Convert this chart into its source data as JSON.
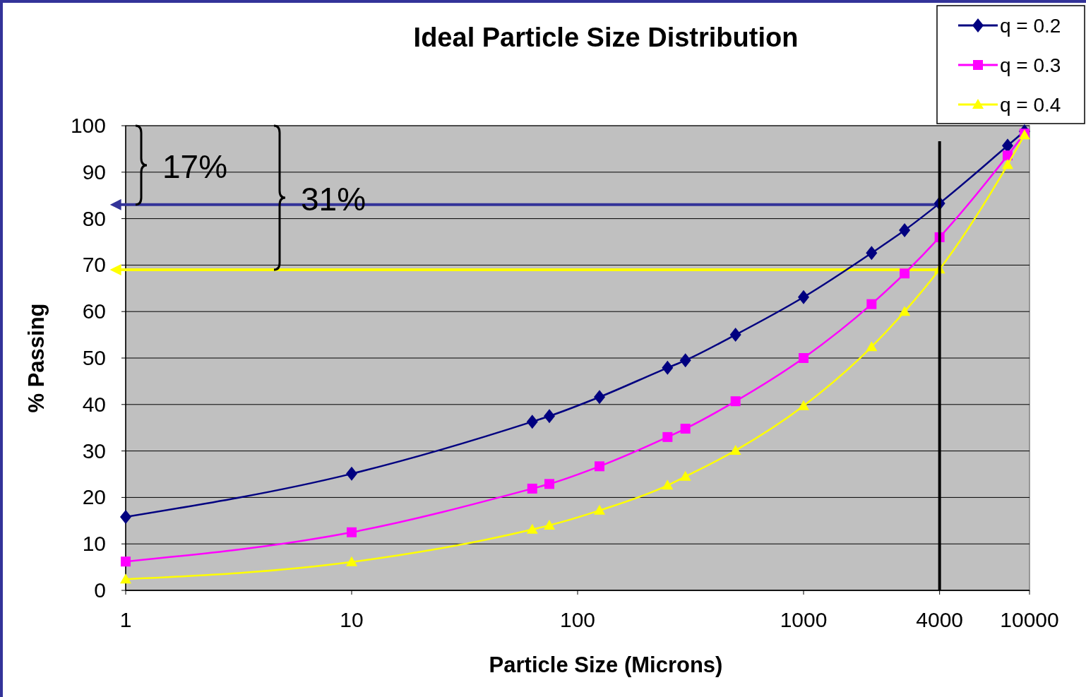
{
  "chart_data": {
    "type": "line",
    "title": "Ideal Particle Size Distribution",
    "xlabel": "Particle Size (Microns)",
    "ylabel": "% Passing",
    "log": "x",
    "xlim": [
      1,
      10000
    ],
    "xticks": [
      1,
      10,
      100,
      1000,
      4000,
      10000
    ],
    "ylim": [
      0,
      100
    ],
    "yticks": [
      0,
      10,
      20,
      30,
      40,
      50,
      60,
      70,
      80,
      90,
      100
    ],
    "grid": "y",
    "legend": "top right",
    "x": [
      1,
      10,
      63,
      75,
      125,
      250,
      300,
      500,
      1000,
      2000,
      2800,
      4000,
      8000,
      9500
    ],
    "series": [
      {
        "name": "q = 0.2",
        "color": "#000080",
        "marker": "diamond",
        "values": [
          15.8,
          25.1,
          36.3,
          37.5,
          41.6,
          47.9,
          49.5,
          55,
          63.1,
          72.6,
          77.5,
          83.3,
          95.7,
          98.8
        ]
      },
      {
        "name": "q = 0.3",
        "color": "#ff00ff",
        "marker": "square",
        "values": [
          6.2,
          12.5,
          21.9,
          22.9,
          26.7,
          33,
          34.8,
          40.7,
          50,
          61.6,
          68.2,
          76,
          93.6,
          98.3
        ]
      },
      {
        "name": "q = 0.4",
        "color": "#ffff00",
        "marker": "triangle",
        "values": [
          2.4,
          6.1,
          13.1,
          14,
          17.2,
          22.6,
          24.5,
          30.1,
          39.7,
          52.4,
          60,
          69.1,
          91.6,
          98
        ]
      }
    ],
    "ref_lines": [
      {
        "axis": "y",
        "value": 83,
        "color": "#333399"
      },
      {
        "axis": "y",
        "value": 69,
        "color": "#ffff00"
      },
      {
        "axis": "x",
        "value": 4000,
        "color": "#000000"
      }
    ],
    "annotations": [
      "17%",
      "31%"
    ]
  }
}
